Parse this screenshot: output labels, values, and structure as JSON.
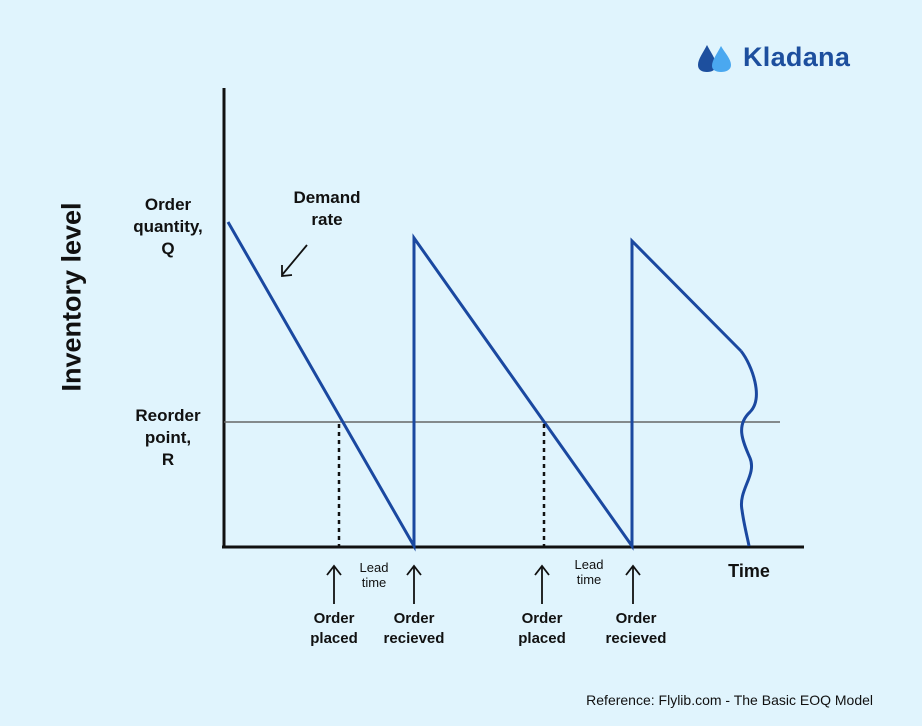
{
  "brand": {
    "name": "Kladana",
    "logo_icon": "kladana-drops-logo",
    "colors": {
      "dark": "#1d4f9e",
      "light": "#4aa8f0"
    }
  },
  "diagram": {
    "y_axis_label": "Inventory level",
    "x_axis_label": "Time",
    "q_label": [
      "Order",
      "quantity,",
      "Q"
    ],
    "r_label": [
      "Reorder",
      "point,",
      "R"
    ],
    "demand_label": [
      "Demand",
      "rate"
    ],
    "lead_time": [
      "Lead",
      "time"
    ],
    "order_placed": [
      "Order",
      "placed"
    ],
    "order_received": [
      "Order",
      "recieved"
    ]
  },
  "reference": "Reference: Flylib.com - The Basic EOQ Model",
  "colors": {
    "background": "#e0f4fd",
    "line": "#1a48a0",
    "axis": "#111111",
    "reorder_line": "#666666"
  }
}
